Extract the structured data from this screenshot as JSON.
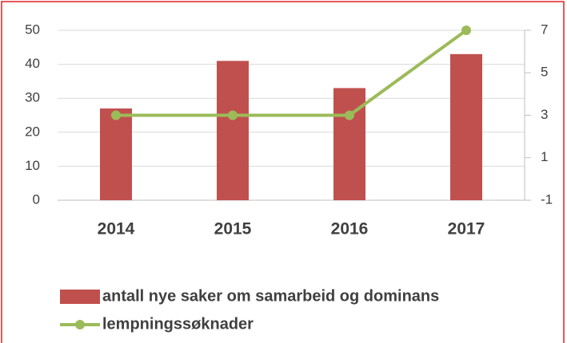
{
  "chart_data": {
    "type": "bar-line",
    "categories": [
      "2014",
      "2015",
      "2016",
      "2017"
    ],
    "series": [
      {
        "name": "antall nye saker om samarbeid og dominans",
        "type": "bar",
        "color": "#c0504d",
        "values": [
          27,
          41,
          33,
          43
        ]
      },
      {
        "name": "lempningssøknader",
        "type": "line",
        "axis": "y2",
        "color": "#9bbb59",
        "values": [
          3,
          3,
          3,
          7
        ]
      }
    ],
    "ylim": [
      0,
      50
    ],
    "yticks": [
      0,
      10,
      20,
      30,
      40,
      50
    ],
    "y2lim": [
      -1,
      7
    ],
    "y2ticks": [
      -1,
      1,
      3,
      5,
      7
    ],
    "grid": true,
    "legend": "bottom"
  }
}
